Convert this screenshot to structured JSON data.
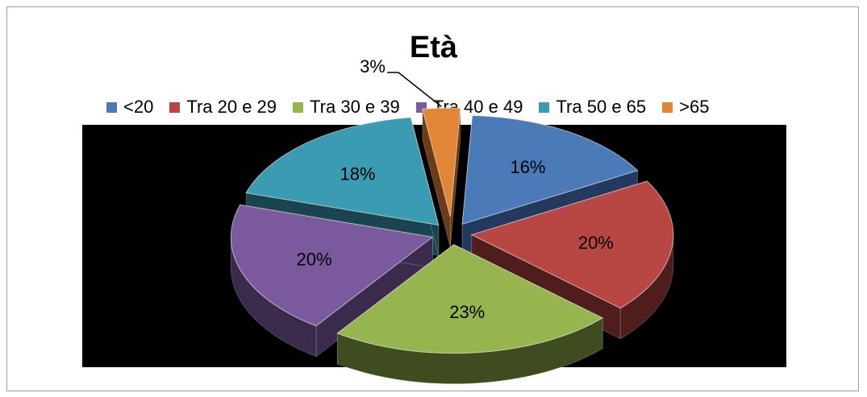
{
  "chart_data": {
    "type": "pie",
    "title": "Età",
    "legend_position": "top",
    "categories": [
      "<20",
      "Tra 20 e 29",
      "Tra 30 e 39",
      "Tra 40 e 49",
      "Tra 50 e 65",
      ">65"
    ],
    "values": [
      16,
      20,
      23,
      20,
      18,
      3
    ],
    "data_labels": [
      "16%",
      "20%",
      "23%",
      "20%",
      "18%",
      "3%"
    ],
    "colors": [
      "#4a7ab8",
      "#b84744",
      "#97b54f",
      "#7a5a9c",
      "#3a9bb2",
      "#e08636"
    ],
    "side_colors": [
      "#233a5e",
      "#4e1d1c",
      "#3e4c20",
      "#3a2a4c",
      "#1a444f",
      "#6b3c16"
    ],
    "plot_background": "#000000",
    "exploded": true
  }
}
